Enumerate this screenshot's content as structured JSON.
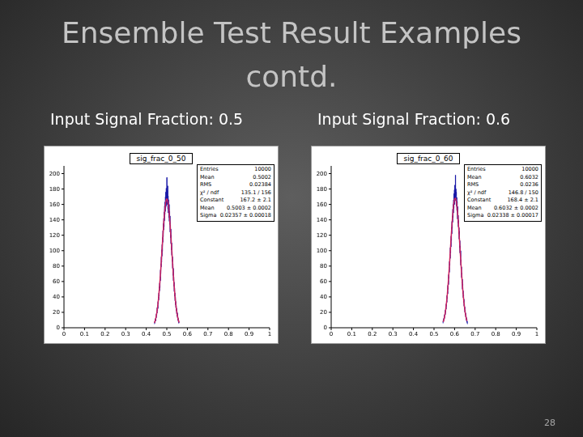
{
  "slide": {
    "title": [
      "Ensemble Test Result Examples",
      "contd."
    ],
    "page": "28"
  },
  "chart_data": [
    {
      "type": "histogram",
      "heading": "Input Signal Fraction: 0.5",
      "title": "sig_frac_0_50",
      "color": "#1a1aa8",
      "xlim": [
        0,
        1
      ],
      "xticks": [
        0,
        0.1,
        0.2,
        0.3,
        0.4,
        0.5,
        0.6,
        0.7,
        0.8,
        0.9,
        1
      ],
      "ylim": [
        0,
        210
      ],
      "yticks": [
        0,
        20,
        40,
        60,
        80,
        100,
        120,
        140,
        160,
        180,
        200
      ],
      "bins": [
        0.44,
        0.441,
        0.442,
        0.443,
        0.444,
        0.445,
        0.446,
        0.447,
        0.448,
        0.449,
        0.45,
        0.451,
        0.452,
        0.453,
        0.454,
        0.455,
        0.456,
        0.457,
        0.458,
        0.459,
        0.46,
        0.461,
        0.462,
        0.463,
        0.464,
        0.465,
        0.466,
        0.467,
        0.468,
        0.469,
        0.47,
        0.471,
        0.472,
        0.473,
        0.474,
        0.475,
        0.476,
        0.477,
        0.478,
        0.479,
        0.48,
        0.481,
        0.482,
        0.483,
        0.484,
        0.485,
        0.486,
        0.487,
        0.488,
        0.489,
        0.49,
        0.491,
        0.492,
        0.493,
        0.494,
        0.495,
        0.496,
        0.497,
        0.498,
        0.499,
        0.5,
        0.501,
        0.502,
        0.503,
        0.504,
        0.505,
        0.506,
        0.507,
        0.508,
        0.509,
        0.51,
        0.511,
        0.512,
        0.513,
        0.514,
        0.515,
        0.516,
        0.517,
        0.518,
        0.519,
        0.52,
        0.521,
        0.522,
        0.523,
        0.524,
        0.525,
        0.526,
        0.527,
        0.528,
        0.529,
        0.53,
        0.531,
        0.532,
        0.533,
        0.534,
        0.535,
        0.536,
        0.537,
        0.538,
        0.539,
        0.54,
        0.541,
        0.542,
        0.543,
        0.544,
        0.545,
        0.546,
        0.547,
        0.548,
        0.549,
        0.55,
        0.551,
        0.552,
        0.553,
        0.554,
        0.555,
        0.556,
        0.557,
        0.558,
        0.559,
        0.56
      ],
      "counts": [
        5,
        8,
        7,
        11,
        9,
        12,
        9,
        15,
        13,
        18,
        16,
        21,
        19,
        26,
        22,
        29,
        25,
        34,
        31,
        40,
        36,
        45,
        41,
        53,
        48,
        58,
        52,
        66,
        61,
        75,
        70,
        83,
        79,
        92,
        85,
        101,
        93,
        108,
        99,
        117,
        111,
        126,
        118,
        135,
        127,
        142,
        131,
        150,
        139,
        158,
        147,
        163,
        151,
        170,
        156,
        176,
        158,
        181,
        162,
        172,
        195,
        160,
        178,
        168,
        184,
        154,
        171,
        149,
        166,
        158,
        143,
        160,
        138,
        151,
        134,
        145,
        124,
        133,
        117,
        128,
        109,
        120,
        101,
        110,
        94,
        99,
        86,
        92,
        77,
        83,
        68,
        77,
        61,
        66,
        54,
        59,
        47,
        52,
        41,
        45,
        35,
        40,
        30,
        34,
        26,
        29,
        22,
        25,
        18,
        21,
        15,
        19,
        13,
        14,
        10,
        12,
        8,
        9,
        6,
        7
      ],
      "fit": {
        "color": "#d0245e",
        "x": [
          0.44,
          0.445,
          0.45,
          0.455,
          0.46,
          0.465,
          0.47,
          0.475,
          0.48,
          0.485,
          0.49,
          0.495,
          0.5,
          0.505,
          0.51,
          0.515,
          0.52,
          0.525,
          0.53,
          0.535,
          0.54,
          0.545,
          0.55,
          0.555,
          0.56
        ],
        "values": [
          6.3,
          10.7,
          17.2,
          26.4,
          38.8,
          54.5,
          73.2,
          94.0,
          115.4,
          135.4,
          152.0,
          163.0,
          167.2,
          163.9,
          153.6,
          137.7,
          117.9,
          96.6,
          75.6,
          56.6,
          40.5,
          27.7,
          18.1,
          11.3,
          6.8
        ]
      },
      "stats": [
        {
          "label": "Entries",
          "value": "10000"
        },
        {
          "label": "Mean",
          "value": "0.5002"
        },
        {
          "label": "RMS",
          "value": "0.02384"
        },
        {
          "label": "χ² / ndf",
          "value": "135.1 / 156"
        },
        {
          "label": "Constant",
          "value": "167.2 ± 2.1"
        },
        {
          "label": "Mean",
          "value": "0.5003 ± 0.0002"
        },
        {
          "label": "Sigma",
          "value": "0.02357 ± 0.00018"
        }
      ]
    },
    {
      "type": "histogram",
      "heading": "Input Signal Fraction: 0.6",
      "title": "sig_frac_0_60",
      "color": "#1a1aa8",
      "xlim": [
        0,
        1
      ],
      "xticks": [
        0,
        0.1,
        0.2,
        0.3,
        0.4,
        0.5,
        0.6,
        0.7,
        0.8,
        0.9,
        1
      ],
      "ylim": [
        0,
        210
      ],
      "yticks": [
        0,
        20,
        40,
        60,
        80,
        100,
        120,
        140,
        160,
        180,
        200
      ],
      "bins": [
        0.543,
        0.544,
        0.545,
        0.546,
        0.547,
        0.548,
        0.549,
        0.55,
        0.551,
        0.552,
        0.553,
        0.554,
        0.555,
        0.556,
        0.557,
        0.558,
        0.559,
        0.56,
        0.561,
        0.562,
        0.563,
        0.564,
        0.565,
        0.566,
        0.567,
        0.568,
        0.569,
        0.57,
        0.571,
        0.572,
        0.573,
        0.574,
        0.575,
        0.576,
        0.577,
        0.578,
        0.579,
        0.58,
        0.581,
        0.582,
        0.583,
        0.584,
        0.585,
        0.586,
        0.587,
        0.588,
        0.589,
        0.59,
        0.591,
        0.592,
        0.593,
        0.594,
        0.595,
        0.596,
        0.597,
        0.598,
        0.599,
        0.6,
        0.601,
        0.602,
        0.603,
        0.604,
        0.605,
        0.606,
        0.607,
        0.608,
        0.609,
        0.61,
        0.611,
        0.612,
        0.613,
        0.614,
        0.615,
        0.616,
        0.617,
        0.618,
        0.619,
        0.62,
        0.621,
        0.622,
        0.623,
        0.624,
        0.625,
        0.626,
        0.627,
        0.628,
        0.629,
        0.63,
        0.631,
        0.632,
        0.633,
        0.634,
        0.635,
        0.636,
        0.637,
        0.638,
        0.639,
        0.64,
        0.641,
        0.642,
        0.643,
        0.644,
        0.645,
        0.646,
        0.647,
        0.648,
        0.649,
        0.65,
        0.651,
        0.652,
        0.653,
        0.654,
        0.655,
        0.656,
        0.657,
        0.658,
        0.659,
        0.66,
        0.661,
        0.662,
        0.663
      ],
      "counts": [
        6,
        9,
        8,
        10,
        12,
        10,
        14,
        12,
        17,
        15,
        19,
        17,
        23,
        20,
        27,
        24,
        31,
        28,
        35,
        33,
        42,
        38,
        47,
        44,
        55,
        50,
        61,
        56,
        69,
        64,
        78,
        72,
        86,
        81,
        95,
        90,
        104,
        97,
        112,
        105,
        119,
        113,
        130,
        122,
        138,
        129,
        145,
        137,
        154,
        143,
        160,
        149,
        166,
        155,
        174,
        163,
        179,
        160,
        185,
        168,
        171,
        198,
        165,
        180,
        172,
        176,
        158,
        169,
        152,
        164,
        150,
        141,
        157,
        136,
        146,
        131,
        139,
        122,
        130,
        115,
        125,
        104,
        113,
        97,
        106,
        92,
        100,
        81,
        88,
        76,
        79,
        65,
        71,
        58,
        63,
        50,
        57,
        44,
        48,
        39,
        43,
        33,
        37,
        28,
        31,
        24,
        27,
        20,
        23,
        17,
        19,
        14,
        16,
        11,
        13,
        9,
        11,
        7,
        8,
        5
      ],
      "fit": {
        "color": "#d0245e",
        "x": [
          0.545,
          0.55,
          0.555,
          0.56,
          0.565,
          0.57,
          0.575,
          0.58,
          0.585,
          0.59,
          0.595,
          0.6,
          0.605,
          0.61,
          0.615,
          0.62,
          0.625,
          0.63,
          0.635,
          0.64,
          0.645,
          0.65,
          0.655,
          0.66
        ],
        "values": [
          7.6,
          12.7,
          20.1,
          30.5,
          44.3,
          61.4,
          81.4,
          102.9,
          124.4,
          143.6,
          158.3,
          166.8,
          167.9,
          161.4,
          148.2,
          130.1,
          109.0,
          87.3,
          66.8,
          48.8,
          34.1,
          22.7,
          14.5,
          8.8
        ]
      },
      "stats": [
        {
          "label": "Entries",
          "value": "10000"
        },
        {
          "label": "Mean",
          "value": "0.6032"
        },
        {
          "label": "RMS",
          "value": "0.0236"
        },
        {
          "label": "χ² / ndf",
          "value": "146.8 / 150"
        },
        {
          "label": "Constant",
          "value": "168.4 ± 2.1"
        },
        {
          "label": "Mean",
          "value": "0.6032 ± 0.0002"
        },
        {
          "label": "Sigma",
          "value": "0.02338 ± 0.00017"
        }
      ]
    }
  ]
}
